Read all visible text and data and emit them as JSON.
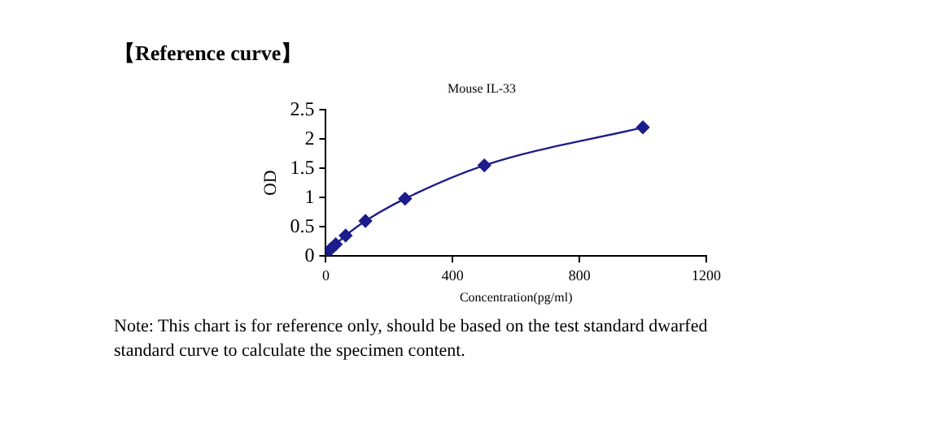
{
  "chart_data": {
    "type": "line",
    "title": "Mouse IL-33",
    "xlabel": "Concentration(pg/ml)",
    "ylabel": "OD",
    "annotations": [
      "【Reference curve】",
      "Note: This chart is for reference only, should be based on the test standard dwarfed standard curve to calculate the specimen content."
    ],
    "x": [
      0,
      15.6,
      31.25,
      62.5,
      125,
      250,
      500,
      1000
    ],
    "series": [
      {
        "color": "#1c1c8c",
        "values": [
          0.05,
          0.12,
          0.2,
          0.35,
          0.6,
          0.98,
          1.55,
          2.2
        ]
      }
    ],
    "xlim": [
      0,
      1200
    ],
    "xticks": [
      0,
      400,
      800,
      1200
    ],
    "ylim": [
      0,
      2.5
    ],
    "yticks": [
      0,
      0.5,
      1,
      1.5,
      2,
      2.5
    ],
    "grid": false,
    "legend": false,
    "marker": "diamond",
    "line_style": "solid"
  }
}
